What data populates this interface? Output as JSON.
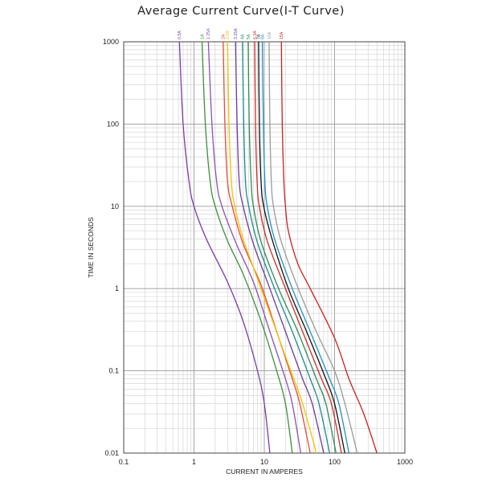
{
  "chart_data": {
    "type": "line",
    "title": "Average Current Curve(I-T Curve)",
    "xlabel": "CURRENT IN AMPERES",
    "ylabel": "TIME IN SECONDS",
    "xscale": "log",
    "yscale": "log",
    "xlim": [
      0.1,
      1000
    ],
    "ylim": [
      0.01,
      1000
    ],
    "x_ticks": [
      "0.1",
      "1",
      "10",
      "100",
      "1000"
    ],
    "y_ticks": [
      "1000",
      "100",
      "10",
      "1",
      "0.1",
      "0.01"
    ],
    "grid": true,
    "series": [
      {
        "name": "0.5A",
        "color": "#7a3aa6",
        "points": [
          [
            0.62,
            1000
          ],
          [
            0.7,
            100
          ],
          [
            0.85,
            20
          ],
          [
            1.0,
            10
          ],
          [
            1.5,
            4
          ],
          [
            3,
            1.2
          ],
          [
            5,
            0.4
          ],
          [
            8,
            0.1
          ],
          [
            10,
            0.04
          ],
          [
            12,
            0.01
          ]
        ]
      },
      {
        "name": "1A",
        "color": "#3c8f3c",
        "points": [
          [
            1.3,
            1000
          ],
          [
            1.45,
            100
          ],
          [
            1.7,
            20
          ],
          [
            2.0,
            10
          ],
          [
            3,
            3.8
          ],
          [
            5,
            1.5
          ],
          [
            9,
            0.4
          ],
          [
            15,
            0.1
          ],
          [
            20,
            0.04
          ],
          [
            25,
            0.01
          ]
        ]
      },
      {
        "name": "1.25A",
        "color": "#8a52b5",
        "points": [
          [
            1.6,
            1000
          ],
          [
            1.8,
            100
          ],
          [
            2.1,
            20
          ],
          [
            2.5,
            10
          ],
          [
            4,
            3.5
          ],
          [
            7,
            1.2
          ],
          [
            12,
            0.3
          ],
          [
            20,
            0.08
          ],
          [
            25,
            0.04
          ],
          [
            33,
            0.01
          ]
        ]
      },
      {
        "name": "2A",
        "color": "#e84a3a",
        "points": [
          [
            2.6,
            1000
          ],
          [
            2.75,
            100
          ],
          [
            3.0,
            20
          ],
          [
            3.5,
            10
          ],
          [
            5,
            3.5
          ],
          [
            9,
            1.1
          ],
          [
            15,
            0.3
          ],
          [
            25,
            0.08
          ],
          [
            32,
            0.04
          ],
          [
            45,
            0.01
          ]
        ]
      },
      {
        "name": "2.5A",
        "color": "#f2c200",
        "points": [
          [
            3.0,
            1000
          ],
          [
            3.15,
            100
          ],
          [
            3.4,
            20
          ],
          [
            3.8,
            10
          ],
          [
            5,
            4
          ],
          [
            7,
            1.8
          ],
          [
            12,
            0.5
          ],
          [
            22,
            0.12
          ],
          [
            35,
            0.04
          ],
          [
            55,
            0.01
          ]
        ]
      },
      {
        "name": "3.15A",
        "color": "#6a3aa0",
        "points": [
          [
            3.9,
            1000
          ],
          [
            4.1,
            100
          ],
          [
            4.4,
            20
          ],
          [
            5.0,
            10
          ],
          [
            7,
            3.5
          ],
          [
            12,
            1.0
          ],
          [
            20,
            0.3
          ],
          [
            35,
            0.08
          ],
          [
            48,
            0.04
          ],
          [
            70,
            0.01
          ]
        ]
      },
      {
        "name": "4A",
        "color": "#1a8a8a",
        "points": [
          [
            4.9,
            1000
          ],
          [
            5.1,
            100
          ],
          [
            5.4,
            20
          ],
          [
            6.0,
            10
          ],
          [
            8,
            3.6
          ],
          [
            14,
            1.0
          ],
          [
            25,
            0.3
          ],
          [
            45,
            0.08
          ],
          [
            60,
            0.04
          ],
          [
            85,
            0.01
          ]
        ]
      },
      {
        "name": "5A",
        "color": "#2e8b57",
        "points": [
          [
            5.9,
            1000
          ],
          [
            6.1,
            100
          ],
          [
            6.5,
            20
          ],
          [
            7.0,
            10
          ],
          [
            9,
            3.7
          ],
          [
            16,
            1.0
          ],
          [
            30,
            0.3
          ],
          [
            55,
            0.08
          ],
          [
            75,
            0.04
          ],
          [
            105,
            0.01
          ]
        ]
      },
      {
        "name": "6.3A",
        "color": "#d62828",
        "points": [
          [
            7.3,
            1000
          ],
          [
            7.5,
            100
          ],
          [
            7.9,
            20
          ],
          [
            8.5,
            10
          ],
          [
            11,
            3.8
          ],
          [
            20,
            1.0
          ],
          [
            35,
            0.3
          ],
          [
            65,
            0.08
          ],
          [
            90,
            0.04
          ],
          [
            125,
            0.01
          ]
        ]
      },
      {
        "name": "7A",
        "color": "#111111",
        "points": [
          [
            8.3,
            1000
          ],
          [
            8.5,
            100
          ],
          [
            9.0,
            20
          ],
          [
            9.8,
            10
          ],
          [
            13,
            3.9
          ],
          [
            22,
            1.0
          ],
          [
            40,
            0.3
          ],
          [
            75,
            0.08
          ],
          [
            100,
            0.04
          ],
          [
            140,
            0.01
          ]
        ]
      },
      {
        "name": "8A",
        "color": "#1e90c8",
        "points": [
          [
            9.4,
            1000
          ],
          [
            9.7,
            100
          ],
          [
            10.2,
            20
          ],
          [
            11,
            10
          ],
          [
            14,
            4
          ],
          [
            25,
            1.0
          ],
          [
            45,
            0.3
          ],
          [
            85,
            0.08
          ],
          [
            115,
            0.04
          ],
          [
            160,
            0.01
          ]
        ]
      },
      {
        "name": "10A",
        "color": "#9a9a9a",
        "points": [
          [
            11.7,
            1000
          ],
          [
            12,
            100
          ],
          [
            12.6,
            20
          ],
          [
            13.5,
            10
          ],
          [
            17,
            4
          ],
          [
            28,
            1.2
          ],
          [
            55,
            0.3
          ],
          [
            100,
            0.1
          ],
          [
            140,
            0.04
          ],
          [
            210,
            0.01
          ]
        ]
      },
      {
        "name": "15A",
        "color": "#cc1f1f",
        "points": [
          [
            17.5,
            1000
          ],
          [
            18,
            100
          ],
          [
            19,
            20
          ],
          [
            20,
            10
          ],
          [
            22,
            5
          ],
          [
            30,
            2
          ],
          [
            45,
            1
          ],
          [
            100,
            0.25
          ],
          [
            160,
            0.08
          ],
          [
            260,
            0.03
          ],
          [
            400,
            0.01
          ]
        ]
      }
    ]
  }
}
